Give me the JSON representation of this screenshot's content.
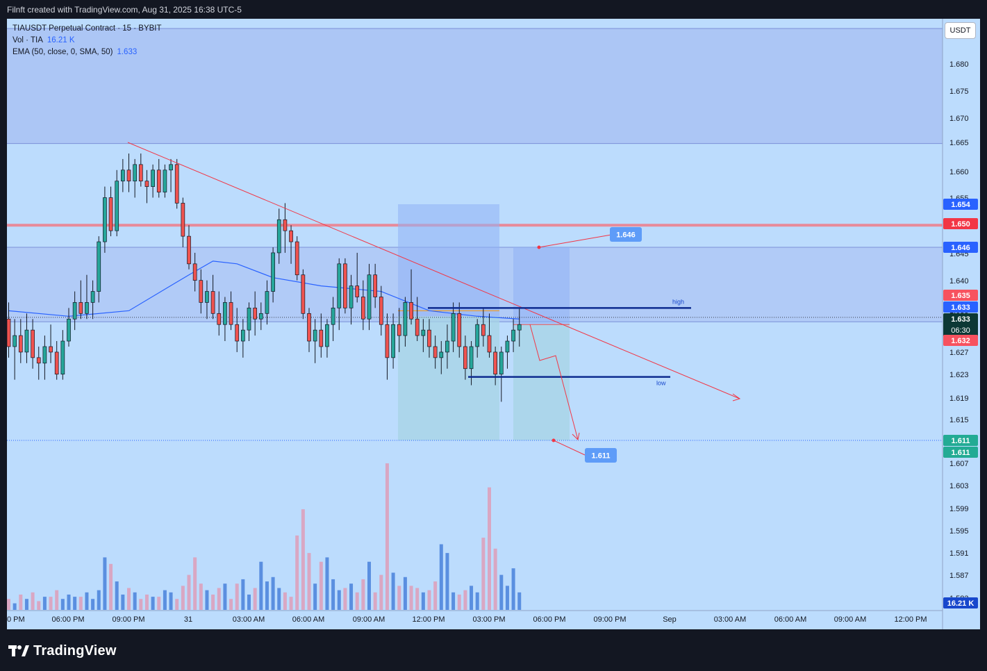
{
  "header": {
    "caption": "Filnft created with TradingView.com, Aug 31, 2025 16:38 UTC-5"
  },
  "legend": {
    "symbol": "TIAUSDT Perpetual Contract · 15 · BYBIT",
    "vol_label": "Vol · TIA",
    "vol_value": "16.21 K",
    "ema_label": "EMA (50, close, 0, SMA, 50)",
    "ema_value": "1.633"
  },
  "brand": {
    "name": "TradingView"
  },
  "colors": {
    "up": "#26a69a",
    "down": "#ef5350",
    "bg": "#bcdcfd",
    "ema": "#2962ff",
    "frame": "#131722"
  },
  "chart_data": {
    "type": "candlestick",
    "quote_unit": "USDT",
    "y_ticks": [
      "1.680",
      "1.675",
      "1.670",
      "1.665",
      "1.660",
      "1.655",
      "1.650",
      "1.645",
      "1.640",
      "1.635",
      "1.631",
      "1.627",
      "1.623",
      "1.619",
      "1.615",
      "1.611",
      "1.607",
      "1.603",
      "1.599",
      "1.595",
      "1.591",
      "1.587",
      "1.583"
    ],
    "x_ticks": [
      "0 PM",
      "06:00 PM",
      "09:00 PM",
      "31",
      "03:00 AM",
      "06:00 AM",
      "09:00 AM",
      "12:00 PM",
      "03:00 PM",
      "06:00 PM",
      "09:00 PM",
      "Sep",
      "03:00 AM",
      "06:00 AM",
      "09:00 AM",
      "12:00 PM"
    ],
    "price_tags": [
      {
        "label": "1.654",
        "price": 1.654,
        "color": "#2962ff"
      },
      {
        "label": "1.650",
        "price": 1.65,
        "color": "#f23645"
      },
      {
        "label": "1.646",
        "price": 1.646,
        "color": "#2962ff"
      },
      {
        "label": "1.635",
        "price": 1.635,
        "color": "#f7525f"
      },
      {
        "label": "1.633",
        "price": 1.633,
        "color": "#2962ff"
      },
      {
        "label": "1.633",
        "sub": "06:30",
        "price": 1.633,
        "color": "#0c3835"
      },
      {
        "label": "1.632",
        "price": 1.632,
        "color": "#f7525f"
      },
      {
        "label": "1.611",
        "price": 1.611,
        "color": "#22ab94"
      },
      {
        "label": "1.611",
        "price": 1.611,
        "color": "#22ab94"
      },
      {
        "label": "16.21 K",
        "color": "#1848cc"
      }
    ],
    "annotations": {
      "high_label": "high",
      "low_label": "low",
      "target_up": "1.646",
      "target_down": "1.611",
      "high_level": 1.635,
      "low_level": 1.6225,
      "resistance": 1.65
    },
    "candles": [
      [
        1.633,
        1.636,
        1.626,
        1.628
      ],
      [
        1.628,
        1.633,
        1.622,
        1.63
      ],
      [
        1.63,
        1.633,
        1.625,
        1.627
      ],
      [
        1.627,
        1.634,
        1.625,
        1.631
      ],
      [
        1.631,
        1.633,
        1.624,
        1.626
      ],
      [
        1.626,
        1.628,
        1.622,
        1.625
      ],
      [
        1.625,
        1.63,
        1.622,
        1.628
      ],
      [
        1.628,
        1.632,
        1.625,
        1.627
      ],
      [
        1.627,
        1.629,
        1.622,
        1.623
      ],
      [
        1.623,
        1.631,
        1.622,
        1.629
      ],
      [
        1.629,
        1.635,
        1.628,
        1.633
      ],
      [
        1.633,
        1.638,
        1.631,
        1.636
      ],
      [
        1.636,
        1.64,
        1.633,
        1.634
      ],
      [
        1.634,
        1.641,
        1.633,
        1.636
      ],
      [
        1.636,
        1.64,
        1.633,
        1.638
      ],
      [
        1.638,
        1.648,
        1.636,
        1.647
      ],
      [
        1.647,
        1.657,
        1.645,
        1.655
      ],
      [
        1.655,
        1.657,
        1.648,
        1.649
      ],
      [
        1.649,
        1.66,
        1.648,
        1.658
      ],
      [
        1.658,
        1.662,
        1.656,
        1.66
      ],
      [
        1.66,
        1.663,
        1.656,
        1.658
      ],
      [
        1.658,
        1.662,
        1.655,
        1.661
      ],
      [
        1.661,
        1.663,
        1.657,
        1.658
      ],
      [
        1.658,
        1.66,
        1.654,
        1.657
      ],
      [
        1.657,
        1.661,
        1.655,
        1.66
      ],
      [
        1.66,
        1.662,
        1.655,
        1.656
      ],
      [
        1.656,
        1.661,
        1.655,
        1.66
      ],
      [
        1.66,
        1.662,
        1.656,
        1.661
      ],
      [
        1.661,
        1.662,
        1.653,
        1.654
      ],
      [
        1.654,
        1.655,
        1.646,
        1.648
      ],
      [
        1.648,
        1.65,
        1.642,
        1.643
      ],
      [
        1.643,
        1.645,
        1.638,
        1.64
      ],
      [
        1.64,
        1.642,
        1.634,
        1.636
      ],
      [
        1.636,
        1.64,
        1.633,
        1.638
      ],
      [
        1.638,
        1.641,
        1.633,
        1.634
      ],
      [
        1.634,
        1.638,
        1.63,
        1.632
      ],
      [
        1.632,
        1.637,
        1.629,
        1.636
      ],
      [
        1.636,
        1.638,
        1.631,
        1.632
      ],
      [
        1.632,
        1.635,
        1.627,
        1.629
      ],
      [
        1.629,
        1.633,
        1.626,
        1.631
      ],
      [
        1.631,
        1.636,
        1.629,
        1.635
      ],
      [
        1.635,
        1.638,
        1.63,
        1.633
      ],
      [
        1.633,
        1.636,
        1.631,
        1.634
      ],
      [
        1.634,
        1.64,
        1.632,
        1.638
      ],
      [
        1.638,
        1.646,
        1.636,
        1.645
      ],
      [
        1.645,
        1.653,
        1.643,
        1.651
      ],
      [
        1.651,
        1.654,
        1.645,
        1.649
      ],
      [
        1.649,
        1.65,
        1.643,
        1.647
      ],
      [
        1.647,
        1.648,
        1.64,
        1.641
      ],
      [
        1.641,
        1.642,
        1.633,
        1.634
      ],
      [
        1.634,
        1.635,
        1.627,
        1.629
      ],
      [
        1.629,
        1.633,
        1.625,
        1.631
      ],
      [
        1.631,
        1.634,
        1.626,
        1.628
      ],
      [
        1.628,
        1.633,
        1.626,
        1.632
      ],
      [
        1.632,
        1.637,
        1.629,
        1.635
      ],
      [
        1.635,
        1.644,
        1.631,
        1.643
      ],
      [
        1.643,
        1.644,
        1.634,
        1.635
      ],
      [
        1.635,
        1.641,
        1.632,
        1.639
      ],
      [
        1.639,
        1.645,
        1.636,
        1.637
      ],
      [
        1.637,
        1.64,
        1.631,
        1.633
      ],
      [
        1.633,
        1.643,
        1.631,
        1.641
      ],
      [
        1.641,
        1.643,
        1.635,
        1.637
      ],
      [
        1.637,
        1.639,
        1.63,
        1.632
      ],
      [
        1.632,
        1.634,
        1.622,
        1.626
      ],
      [
        1.626,
        1.634,
        1.624,
        1.632
      ],
      [
        1.632,
        1.635,
        1.627,
        1.63
      ],
      [
        1.63,
        1.637,
        1.628,
        1.636
      ],
      [
        1.636,
        1.642,
        1.632,
        1.633
      ],
      [
        1.633,
        1.637,
        1.629,
        1.63
      ],
      [
        1.63,
        1.633,
        1.627,
        1.631
      ],
      [
        1.631,
        1.633,
        1.626,
        1.628
      ],
      [
        1.628,
        1.63,
        1.624,
        1.626
      ],
      [
        1.626,
        1.629,
        1.623,
        1.627
      ],
      [
        1.627,
        1.632,
        1.624,
        1.629
      ],
      [
        1.629,
        1.636,
        1.627,
        1.634
      ],
      [
        1.634,
        1.636,
        1.626,
        1.628
      ],
      [
        1.628,
        1.63,
        1.622,
        1.624
      ],
      [
        1.624,
        1.629,
        1.621,
        1.628
      ],
      [
        1.628,
        1.633,
        1.626,
        1.632
      ],
      [
        1.632,
        1.635,
        1.628,
        1.63
      ],
      [
        1.63,
        1.634,
        1.626,
        1.627
      ],
      [
        1.627,
        1.628,
        1.621,
        1.623
      ],
      [
        1.623,
        1.628,
        1.618,
        1.627
      ],
      [
        1.627,
        1.63,
        1.624,
        1.629
      ],
      [
        1.629,
        1.633,
        1.627,
        1.631
      ],
      [
        1.631,
        1.635,
        1.628,
        1.632
      ]
    ],
    "volume": [
      5,
      3,
      7,
      5,
      8,
      4,
      6,
      6,
      9,
      5,
      7,
      6,
      6,
      8,
      5,
      9,
      24,
      21,
      13,
      7,
      10,
      8,
      5,
      7,
      6,
      6,
      9,
      8,
      5,
      11,
      16,
      24,
      12,
      9,
      7,
      10,
      12,
      5,
      12,
      14,
      7,
      10,
      22,
      13,
      15,
      10,
      8,
      6,
      34,
      46,
      26,
      12,
      22,
      24,
      14,
      9,
      10,
      12,
      8,
      14,
      22,
      8,
      16,
      67,
      17,
      11,
      15,
      11,
      10,
      8,
      9,
      13,
      30,
      26,
      8,
      7,
      9,
      11,
      8,
      33,
      56,
      28,
      16,
      11,
      19,
      8
    ],
    "ema_points": [
      [
        0,
        1.6345
      ],
      [
        10,
        1.6335
      ],
      [
        20,
        1.6345
      ],
      [
        30,
        1.641
      ],
      [
        34,
        1.6435
      ],
      [
        38,
        1.643
      ],
      [
        44,
        1.6405
      ],
      [
        52,
        1.639
      ],
      [
        62,
        1.638
      ],
      [
        70,
        1.6345
      ],
      [
        78,
        1.6335
      ],
      [
        85,
        1.633
      ]
    ]
  }
}
